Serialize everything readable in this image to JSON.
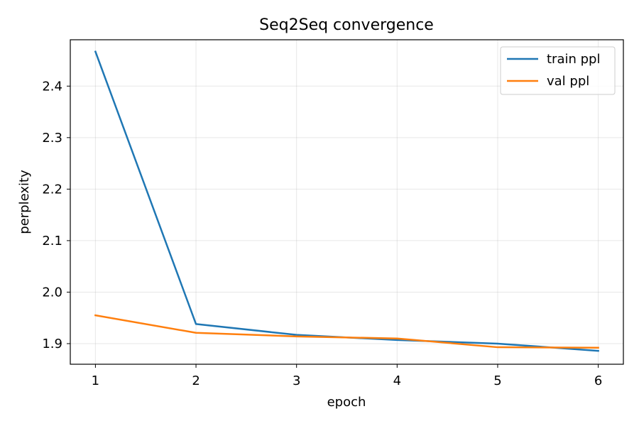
{
  "chart_data": {
    "type": "line",
    "title": "Seq2Seq convergence",
    "xlabel": "epoch",
    "ylabel": "perplexity",
    "x": [
      1,
      2,
      3,
      4,
      5,
      6
    ],
    "xlim": [
      0.75,
      6.25
    ],
    "ylim": [
      1.86,
      2.49
    ],
    "xticks": [
      "1",
      "2",
      "3",
      "4",
      "5",
      "6"
    ],
    "yticks": [
      "1.9",
      "2.0",
      "2.1",
      "2.2",
      "2.3",
      "2.4"
    ],
    "grid": true,
    "legend_position": "top-right",
    "series": [
      {
        "name": "train ppl",
        "color": "#1f77b4",
        "values": [
          2.467,
          1.938,
          1.917,
          1.907,
          1.9,
          1.886
        ]
      },
      {
        "name": "val ppl",
        "color": "#ff7f0e",
        "values": [
          1.955,
          1.921,
          1.914,
          1.91,
          1.893,
          1.892
        ]
      }
    ]
  }
}
